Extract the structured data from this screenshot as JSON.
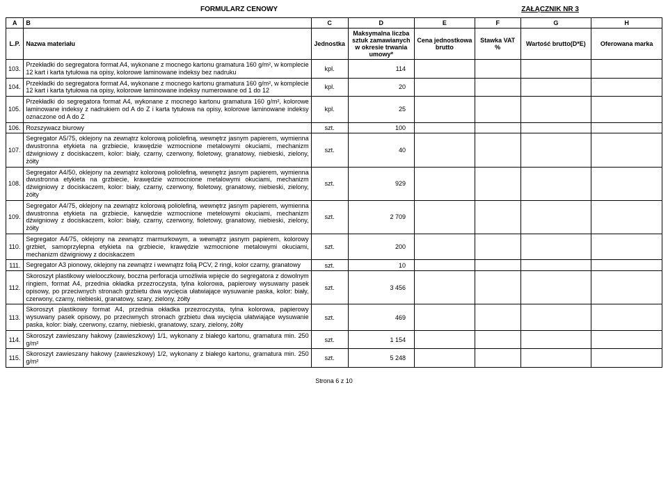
{
  "doc_title": "FORMULARZ CENOWY",
  "doc_annex": "ZAŁĄCZNIK NR 3",
  "letter_row": [
    "A",
    "B",
    "C",
    "D",
    "E",
    "F",
    "G",
    "H"
  ],
  "header_row": [
    "L.P.",
    "Nazwa materiału",
    "Jednostka",
    "Maksymalna liczba sztuk zamawianych w okresie trwania umowy*",
    "Cena jednostkowa brutto",
    "Stawka VAT %",
    "Wartość brutto(D*E)",
    "Oferowana marka"
  ],
  "rows": [
    {
      "lp": "103.",
      "name": "Przekładki do segregatora format A4, wykonane z mocnego kartonu gramatura 160 g/m², w komplecie 12 kart i karta tytułowa na opisy, kolorowe laminowane indeksy bez nadruku",
      "unit": "kpl.",
      "qty": "114"
    },
    {
      "lp": "104.",
      "name": "Przekładki do segregatora format A4, wykonane z mocnego kartonu gramatura 160 g/m², w komplecie 12 kart i karta tytułowa na opisy, kolorowe laminowane indeksy numerowane od 1 do 12",
      "unit": "kpl.",
      "qty": "20"
    },
    {
      "lp": "105.",
      "name": "Przekładki do segregatora format A4, wykonane z mocnego kartonu gramatura 160 g/m², kolorowe laminowane indeksy z nadrukiem od A do Z i karta tytułowa na opisy, kolorowe laminowane indeksy oznaczone od A do Z",
      "unit": "kpl.",
      "qty": "25"
    },
    {
      "lp": "106.",
      "name": "Rozszywacz biurowy",
      "unit": "szt.",
      "qty": "100"
    },
    {
      "lp": "107.",
      "name": "Segregator A5/75, oklejony na zewnątrz kolorową poliolefiną, wewnętrz jasnym papierem, wymienna dwustronna etykieta na grzbiecie, krawędzie wzmocnione metalowymi okuciami, mechanizm dźwigniowy z dociskaczem, kolor: biały, czarny, czerwony, fioletowy, granatowy, niebieski, zielony, żółty",
      "unit": "szt.",
      "qty": "40"
    },
    {
      "lp": "108.",
      "name": "Segregator A4/50, oklejony na zewnątrz kolorową poliolefiną, wewnętrz jasnym papierem, wymienna dwustronna etykieta na grzbiecie, krawędzie wzmocnione metalowymi okuciami, mechanizm dźwigniowy z dociskaczem, kolor: biały, czarny, czerwony, fioletowy, granatowy, niebieski, zielony, żółty",
      "unit": "szt.",
      "qty": "929"
    },
    {
      "lp": "109.",
      "name": "Segregator A4/75, oklejony na zewnątrz kolorową poliolefiną, wewnętrz jasnym papierem, wymienna dwustronna etykieta na grzbiecie, karwędzie wzmocnione metelowymi okuciami, mechanizm dźwigniowy z dociskaczem, kolor: biały, czarny, czerwony, fioletowy, granatowy, niebieski, zielony, żółty",
      "unit": "szt.",
      "qty": "2 709"
    },
    {
      "lp": "110.",
      "name": "Segregator A4/75, oklejony na zewnątrz marmurkowym, a wewnątrz jasnym papierem, kolorowy grzbiet, samoprzylepna etykieta na grzbiecie, krawędzie wzmocnione metalowymi okuciami, mechanizm dźwigniowy z dociskaczem",
      "unit": "szt.",
      "qty": "200"
    },
    {
      "lp": "111.",
      "name": "Segregator A3 pionowy, oklejony na zewnątrz i wewnątrz folią PCV, 2 ringi, kolor czarny, granatowy",
      "unit": "szt.",
      "qty": "10"
    },
    {
      "lp": "112.",
      "name": "Skoroszyt plastikowy wielooczkowy, boczna perforacja umożliwia wpięcie do segregatora z dowolnym ringiem, format A4, przednia okładka przezroczysta, tylna kolorowa, papierowy wysuwany pasek opisowy, po przeciwnych stronach grzbietu dwa wycięcia ułatwiające wysuwanie paska, kolor: biały, czerwony, czarny, niebieski, granatowy, szary, zielony, żółty",
      "unit": "szt.",
      "qty": "3 456"
    },
    {
      "lp": "113.",
      "name": "Skoroszyt plastikowy format A4, przednia okładka przezroczysta, tylna kolorowa, papierowy wysuwany pasek opisowy, po przeciwnych stronach grzbietu dwa wycięcia ułatwiające wysuwanie paska, kolor: biały, czerwony, czarny, niebieski, granatowy, szary, zielony, żółty",
      "unit": "szt.",
      "qty": "469"
    },
    {
      "lp": "114.",
      "name": "Skoroszyt zawieszany hakowy (zawieszkowy) 1/1, wykonany z białego kartonu, gramatura min. 250 g/m²",
      "unit": "szt.",
      "qty": "1 154"
    },
    {
      "lp": "115.",
      "name": "Skoroszyt zawieszany hakowy (zawieszkowy) 1/2, wykonany z białego kartonu, gramatura min. 250 g/m²",
      "unit": "szt.",
      "qty": "5 248"
    }
  ],
  "footer": "Strona 6 z 10"
}
